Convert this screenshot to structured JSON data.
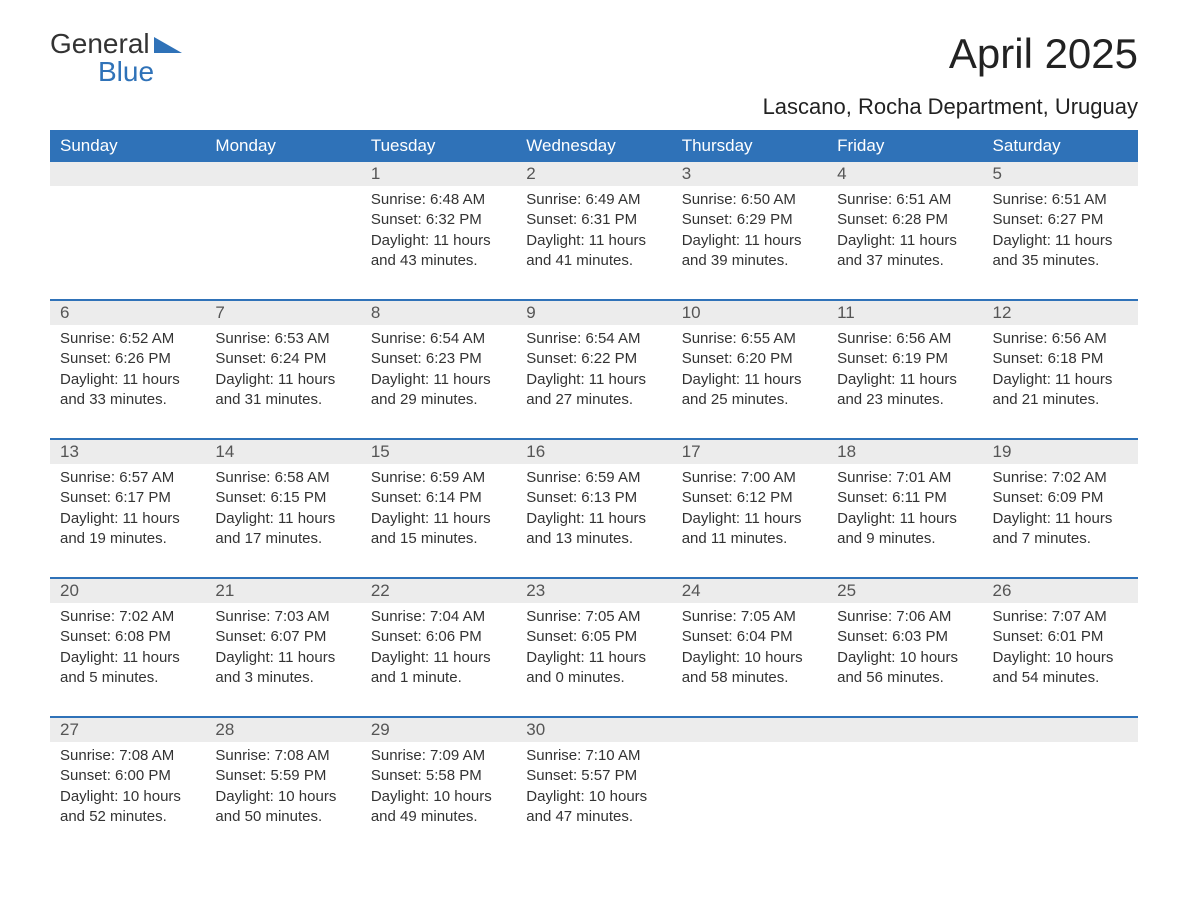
{
  "logo": {
    "text1": "General",
    "text2": "Blue"
  },
  "title": "April 2025",
  "location": "Lascano, Rocha Department, Uruguay",
  "colors": {
    "header_bg": "#2f72b8",
    "header_text": "#ffffff",
    "daynum_bg": "#ececec",
    "row_border": "#2f72b8",
    "body_text": "#333333",
    "page_bg": "#ffffff"
  },
  "day_headers": [
    "Sunday",
    "Monday",
    "Tuesday",
    "Wednesday",
    "Thursday",
    "Friday",
    "Saturday"
  ],
  "weeks": [
    {
      "nums": [
        "",
        "",
        "1",
        "2",
        "3",
        "4",
        "5"
      ],
      "details": [
        null,
        null,
        {
          "sunrise": "Sunrise: 6:48 AM",
          "sunset": "Sunset: 6:32 PM",
          "dl1": "Daylight: 11 hours",
          "dl2": "and 43 minutes."
        },
        {
          "sunrise": "Sunrise: 6:49 AM",
          "sunset": "Sunset: 6:31 PM",
          "dl1": "Daylight: 11 hours",
          "dl2": "and 41 minutes."
        },
        {
          "sunrise": "Sunrise: 6:50 AM",
          "sunset": "Sunset: 6:29 PM",
          "dl1": "Daylight: 11 hours",
          "dl2": "and 39 minutes."
        },
        {
          "sunrise": "Sunrise: 6:51 AM",
          "sunset": "Sunset: 6:28 PM",
          "dl1": "Daylight: 11 hours",
          "dl2": "and 37 minutes."
        },
        {
          "sunrise": "Sunrise: 6:51 AM",
          "sunset": "Sunset: 6:27 PM",
          "dl1": "Daylight: 11 hours",
          "dl2": "and 35 minutes."
        }
      ]
    },
    {
      "nums": [
        "6",
        "7",
        "8",
        "9",
        "10",
        "11",
        "12"
      ],
      "details": [
        {
          "sunrise": "Sunrise: 6:52 AM",
          "sunset": "Sunset: 6:26 PM",
          "dl1": "Daylight: 11 hours",
          "dl2": "and 33 minutes."
        },
        {
          "sunrise": "Sunrise: 6:53 AM",
          "sunset": "Sunset: 6:24 PM",
          "dl1": "Daylight: 11 hours",
          "dl2": "and 31 minutes."
        },
        {
          "sunrise": "Sunrise: 6:54 AM",
          "sunset": "Sunset: 6:23 PM",
          "dl1": "Daylight: 11 hours",
          "dl2": "and 29 minutes."
        },
        {
          "sunrise": "Sunrise: 6:54 AM",
          "sunset": "Sunset: 6:22 PM",
          "dl1": "Daylight: 11 hours",
          "dl2": "and 27 minutes."
        },
        {
          "sunrise": "Sunrise: 6:55 AM",
          "sunset": "Sunset: 6:20 PM",
          "dl1": "Daylight: 11 hours",
          "dl2": "and 25 minutes."
        },
        {
          "sunrise": "Sunrise: 6:56 AM",
          "sunset": "Sunset: 6:19 PM",
          "dl1": "Daylight: 11 hours",
          "dl2": "and 23 minutes."
        },
        {
          "sunrise": "Sunrise: 6:56 AM",
          "sunset": "Sunset: 6:18 PM",
          "dl1": "Daylight: 11 hours",
          "dl2": "and 21 minutes."
        }
      ]
    },
    {
      "nums": [
        "13",
        "14",
        "15",
        "16",
        "17",
        "18",
        "19"
      ],
      "details": [
        {
          "sunrise": "Sunrise: 6:57 AM",
          "sunset": "Sunset: 6:17 PM",
          "dl1": "Daylight: 11 hours",
          "dl2": "and 19 minutes."
        },
        {
          "sunrise": "Sunrise: 6:58 AM",
          "sunset": "Sunset: 6:15 PM",
          "dl1": "Daylight: 11 hours",
          "dl2": "and 17 minutes."
        },
        {
          "sunrise": "Sunrise: 6:59 AM",
          "sunset": "Sunset: 6:14 PM",
          "dl1": "Daylight: 11 hours",
          "dl2": "and 15 minutes."
        },
        {
          "sunrise": "Sunrise: 6:59 AM",
          "sunset": "Sunset: 6:13 PM",
          "dl1": "Daylight: 11 hours",
          "dl2": "and 13 minutes."
        },
        {
          "sunrise": "Sunrise: 7:00 AM",
          "sunset": "Sunset: 6:12 PM",
          "dl1": "Daylight: 11 hours",
          "dl2": "and 11 minutes."
        },
        {
          "sunrise": "Sunrise: 7:01 AM",
          "sunset": "Sunset: 6:11 PM",
          "dl1": "Daylight: 11 hours",
          "dl2": "and 9 minutes."
        },
        {
          "sunrise": "Sunrise: 7:02 AM",
          "sunset": "Sunset: 6:09 PM",
          "dl1": "Daylight: 11 hours",
          "dl2": "and 7 minutes."
        }
      ]
    },
    {
      "nums": [
        "20",
        "21",
        "22",
        "23",
        "24",
        "25",
        "26"
      ],
      "details": [
        {
          "sunrise": "Sunrise: 7:02 AM",
          "sunset": "Sunset: 6:08 PM",
          "dl1": "Daylight: 11 hours",
          "dl2": "and 5 minutes."
        },
        {
          "sunrise": "Sunrise: 7:03 AM",
          "sunset": "Sunset: 6:07 PM",
          "dl1": "Daylight: 11 hours",
          "dl2": "and 3 minutes."
        },
        {
          "sunrise": "Sunrise: 7:04 AM",
          "sunset": "Sunset: 6:06 PM",
          "dl1": "Daylight: 11 hours",
          "dl2": "and 1 minute."
        },
        {
          "sunrise": "Sunrise: 7:05 AM",
          "sunset": "Sunset: 6:05 PM",
          "dl1": "Daylight: 11 hours",
          "dl2": "and 0 minutes."
        },
        {
          "sunrise": "Sunrise: 7:05 AM",
          "sunset": "Sunset: 6:04 PM",
          "dl1": "Daylight: 10 hours",
          "dl2": "and 58 minutes."
        },
        {
          "sunrise": "Sunrise: 7:06 AM",
          "sunset": "Sunset: 6:03 PM",
          "dl1": "Daylight: 10 hours",
          "dl2": "and 56 minutes."
        },
        {
          "sunrise": "Sunrise: 7:07 AM",
          "sunset": "Sunset: 6:01 PM",
          "dl1": "Daylight: 10 hours",
          "dl2": "and 54 minutes."
        }
      ]
    },
    {
      "nums": [
        "27",
        "28",
        "29",
        "30",
        "",
        "",
        ""
      ],
      "details": [
        {
          "sunrise": "Sunrise: 7:08 AM",
          "sunset": "Sunset: 6:00 PM",
          "dl1": "Daylight: 10 hours",
          "dl2": "and 52 minutes."
        },
        {
          "sunrise": "Sunrise: 7:08 AM",
          "sunset": "Sunset: 5:59 PM",
          "dl1": "Daylight: 10 hours",
          "dl2": "and 50 minutes."
        },
        {
          "sunrise": "Sunrise: 7:09 AM",
          "sunset": "Sunset: 5:58 PM",
          "dl1": "Daylight: 10 hours",
          "dl2": "and 49 minutes."
        },
        {
          "sunrise": "Sunrise: 7:10 AM",
          "sunset": "Sunset: 5:57 PM",
          "dl1": "Daylight: 10 hours",
          "dl2": "and 47 minutes."
        },
        null,
        null,
        null
      ]
    }
  ]
}
